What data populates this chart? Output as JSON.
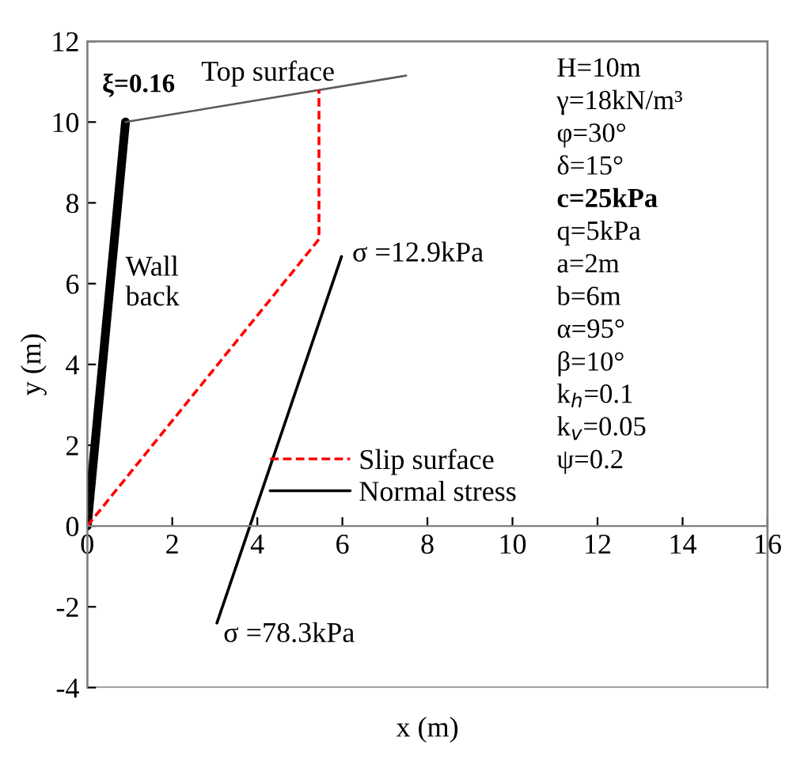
{
  "chart_data": {
    "type": "line",
    "xlabel": "x (m)",
    "ylabel": "y (m)",
    "xlim": [
      0,
      16
    ],
    "xticks": [
      0,
      2,
      4,
      6,
      8,
      10,
      12,
      14,
      16
    ],
    "ylim": [
      -4,
      12
    ],
    "yticks": [
      -4,
      -2,
      0,
      2,
      4,
      6,
      8,
      10,
      12
    ],
    "grid": false,
    "legend": "bottom",
    "series": [
      {
        "color": "#000000",
        "x": [
          0,
          0.9
        ],
        "values": [
          0,
          10
        ],
        "line_style": "solid"
      },
      {
        "color": "#595959",
        "x": [
          0.9,
          7.5
        ],
        "values": [
          10,
          11.15
        ],
        "line_style": "solid"
      },
      {
        "name": "Slip surface",
        "color": "#ff0000",
        "x": [
          0,
          5.45,
          5.45
        ],
        "values": [
          0,
          7.1,
          10.8
        ],
        "line_style": "dashed"
      },
      {
        "name": "Normal stress",
        "color": "#000000",
        "x": [
          3.05,
          5.98
        ],
        "values": [
          -2.4,
          6.67
        ],
        "line_style": "solid"
      }
    ],
    "annotations": [
      {
        "text": "ξ=0.16",
        "x": 0.9,
        "y": 10
      },
      {
        "text": "Top surface",
        "x": 5.45,
        "y": 10.8
      },
      {
        "text": "Wall\nback",
        "x": 0.6,
        "y": 6
      },
      {
        "text": "σ =12.9kPa",
        "x": 5.98,
        "y": 6.67
      },
      {
        "text": "σ =78.3kPa",
        "x": 3.05,
        "y": -2.4
      },
      "H=10m",
      "γ=18kN/m³",
      "φ=30°",
      "δ=15°",
      "c=25kPa",
      "q=5kPa",
      "a=2m",
      "b=6m",
      "α=95°",
      "β=10°",
      "k$_{h}$=0.1",
      "k$_{v}$=0.05",
      "ψ=0.2"
    ]
  }
}
